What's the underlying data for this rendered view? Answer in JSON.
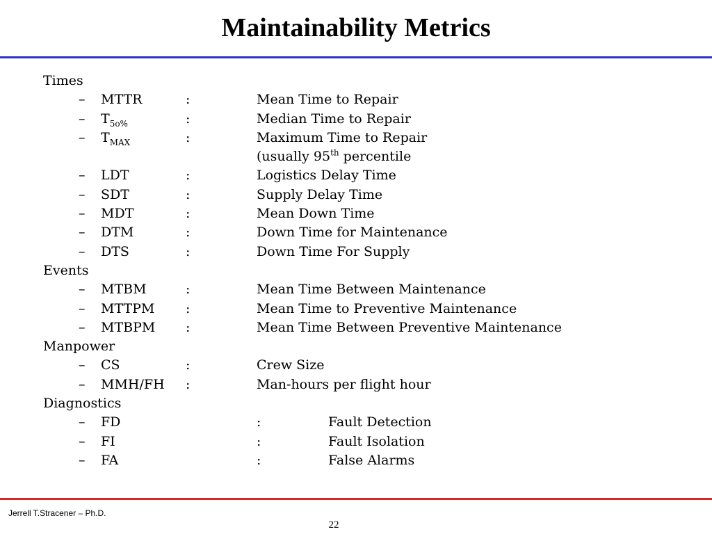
{
  "slide": {
    "title": "Maintainability Metrics",
    "footer_author": "Jerrell T.Stracener – Ph.D.",
    "page_number": "22",
    "colors": {
      "title_rule": "#2e2fc8",
      "footer_rule": "#d42a2a"
    }
  },
  "sections": {
    "times": {
      "label": "Times",
      "items": [
        {
          "dash": "–",
          "abbr": "MTTR",
          "colon": ":",
          "desc": "Mean Time to Repair"
        },
        {
          "dash": "–",
          "abbr": "T",
          "abbr_sub": "5o%",
          "colon": ":",
          "desc": "Median Time to Repair"
        },
        {
          "dash": "–",
          "abbr": "T",
          "abbr_sub": "MAX",
          "colon": ":",
          "desc": "Maximum Time to Repair",
          "desc_cont_pre": "(usually 95",
          "desc_cont_sup": "th",
          "desc_cont_post": " percentile"
        },
        {
          "dash": "–",
          "abbr": "LDT",
          "colon": ":",
          "desc": "Logistics Delay Time"
        },
        {
          "dash": "–",
          "abbr": "SDT",
          "colon": ":",
          "desc": "Supply Delay Time"
        },
        {
          "dash": "–",
          "abbr": "MDT",
          "colon": ":",
          "desc": "Mean Down Time"
        },
        {
          "dash": "–",
          "abbr": "DTM",
          "colon": ":",
          "desc": "Down Time for Maintenance"
        },
        {
          "dash": "–",
          "abbr": "DTS",
          "colon": ":",
          "desc": "Down Time For Supply"
        }
      ]
    },
    "events": {
      "label": "Events",
      "items": [
        {
          "dash": "–",
          "abbr": "MTBM",
          "colon": ":",
          "desc": "Mean Time Between Maintenance"
        },
        {
          "dash": "–",
          "abbr": "MTTPM",
          "colon": ":",
          "desc": "Mean Time to Preventive Maintenance"
        },
        {
          "dash": "–",
          "abbr": "MTBPM",
          "colon": ":",
          "desc": "Mean Time Between Preventive Maintenance"
        }
      ]
    },
    "manpower": {
      "label": "Manpower",
      "items": [
        {
          "dash": "–",
          "abbr": "CS",
          "colon": ":",
          "desc": "Crew Size"
        },
        {
          "dash": "–",
          "abbr": "MMH/FH",
          "colon": ":",
          "desc": "Man-hours per flight hour"
        }
      ]
    },
    "diagnostics": {
      "label": "Diagnostics",
      "items": [
        {
          "dash": "–",
          "abbr": "FD",
          "colon": ":",
          "desc": "Fault Detection"
        },
        {
          "dash": "–",
          "abbr": "FI",
          "colon": ":",
          "desc": "Fault Isolation"
        },
        {
          "dash": "–",
          "abbr": "FA",
          "colon": ":",
          "desc": "False Alarms"
        }
      ]
    }
  }
}
